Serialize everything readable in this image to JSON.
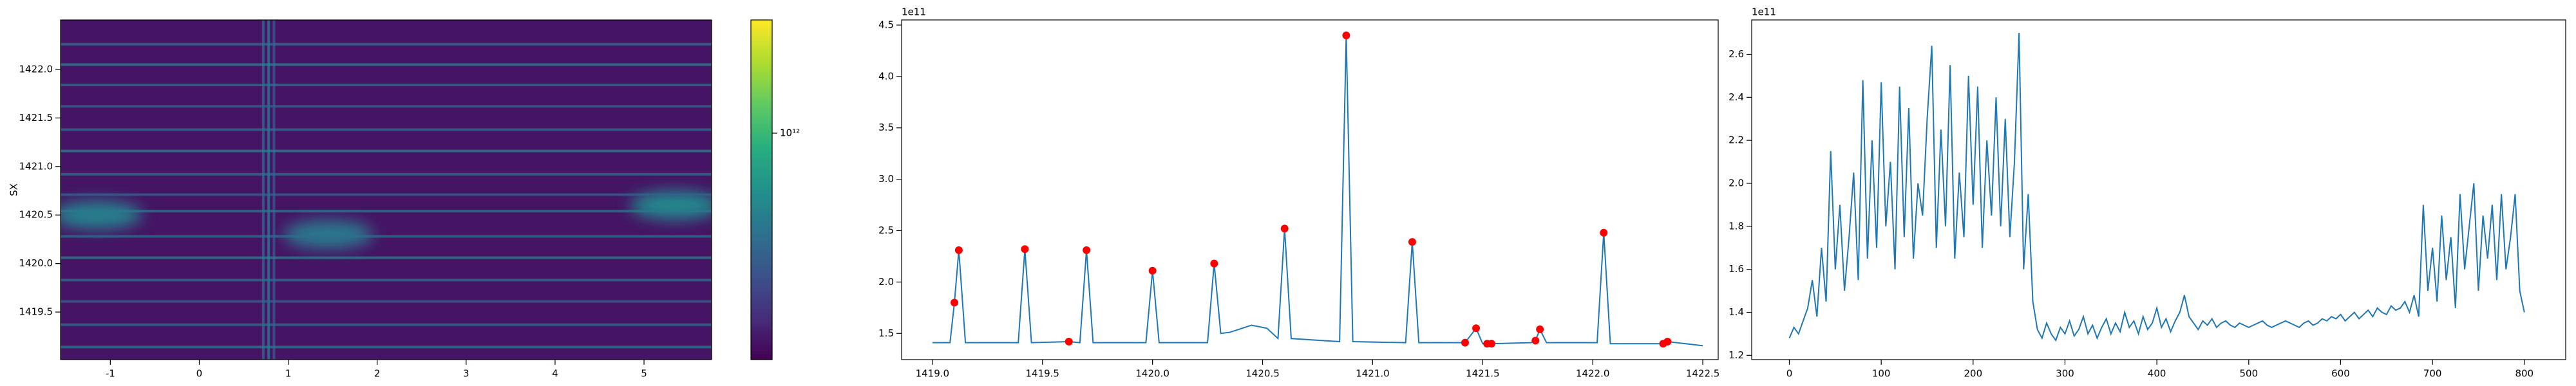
{
  "chart_data": [
    {
      "type": "heatmap",
      "ylabel": "SX",
      "xlim": [
        -1.56,
        5.76
      ],
      "ylim": [
        1419.01,
        1422.51
      ],
      "xticks": [
        -1,
        0,
        1,
        2,
        3,
        4,
        5
      ],
      "yticks": [
        1419.5,
        {
          "value": 1420,
          "label": "1420.0"
        },
        1420.5,
        {
          "value": 1421,
          "label": "1421.0"
        },
        1421.5,
        {
          "value": 1422,
          "label": "1422.0"
        }
      ],
      "colormap": "viridis",
      "color_scale": "log",
      "clim": [
        100000000000.0,
        3162000000000.0
      ],
      "colorbar_ticks": [
        {
          "value": 1000000000000.0,
          "label": "10¹²"
        }
      ],
      "background": 120000000000.0,
      "h_lines": {
        "y": [
          1422.26,
          1422.05,
          1421.84,
          1421.62,
          1421.38,
          1421.16,
          1420.92,
          1420.71,
          1420.54,
          1420.28,
          1420.06,
          1419.83,
          1419.61,
          1419.37,
          1419.14
        ],
        "values": [
          350000000000.0,
          450000000000.0,
          350000000000.0,
          300000000000.0,
          350000000000.0,
          450000000000.0,
          350000000000.0,
          300000000000.0,
          400000000000.0,
          350000000000.0,
          450000000000.0,
          350000000000.0,
          300000000000.0,
          350000000000.0,
          400000000000.0
        ]
      },
      "v_lines": {
        "x": [
          0.72,
          0.78,
          0.84
        ],
        "values": [
          300000000000.0,
          400000000000.0,
          250000000000.0
        ]
      },
      "blobs": {
        "x": [
          -1.15,
          1.45,
          5.35
        ],
        "y": [
          1420.5,
          1420.3,
          1420.6
        ],
        "values": [
          450000000000.0,
          400000000000.0,
          500000000000.0
        ]
      }
    },
    {
      "type": "line",
      "offset_text": "1e11",
      "xlim": [
        1418.86,
        1422.57
      ],
      "ylim": [
        1.245,
        4.55
      ],
      "xticks": [
        {
          "value": 1419,
          "label": "1419.0"
        },
        1419.5,
        {
          "value": 1420,
          "label": "1420.0"
        },
        1420.5,
        {
          "value": 1421,
          "label": "1421.0"
        },
        1421.5,
        {
          "value": 1422,
          "label": "1422.0"
        },
        1422.5
      ],
      "yticks": [
        1.5,
        {
          "value": 2,
          "label": "2.0"
        },
        2.5,
        {
          "value": 3,
          "label": "3.0"
        },
        3.5,
        {
          "value": 4,
          "label": "4.0"
        },
        4.5
      ],
      "series": [
        {
          "color": "#1f77b4",
          "x": [
            1419.0,
            1419.08,
            1419.1,
            1419.12,
            1419.15,
            1419.39,
            1419.42,
            1419.45,
            1419.62,
            1419.67,
            1419.7,
            1419.73,
            1419.97,
            1420.0,
            1420.03,
            1420.25,
            1420.28,
            1420.31,
            1420.35,
            1420.45,
            1420.52,
            1420.57,
            1420.6,
            1420.63,
            1420.85,
            1420.88,
            1420.91,
            1421.15,
            1421.18,
            1421.21,
            1421.42,
            1421.47,
            1421.5,
            1421.52,
            1421.54,
            1421.72,
            1421.74,
            1421.76,
            1421.79,
            1422.02,
            1422.05,
            1422.08,
            1422.32,
            1422.34,
            1422.5
          ],
          "values": [
            1.41,
            1.41,
            1.8,
            2.31,
            1.41,
            1.41,
            2.32,
            1.41,
            1.42,
            1.41,
            2.31,
            1.41,
            1.41,
            2.11,
            1.41,
            1.41,
            2.18,
            1.5,
            1.51,
            1.58,
            1.55,
            1.45,
            2.52,
            1.45,
            1.42,
            4.4,
            1.42,
            1.41,
            2.39,
            1.41,
            1.41,
            1.55,
            1.4,
            1.4,
            1.4,
            1.41,
            1.43,
            1.54,
            1.41,
            1.41,
            2.48,
            1.4,
            1.4,
            1.42,
            1.38
          ]
        }
      ],
      "peaks": {
        "color": "#ff0000",
        "x": [
          1419.1,
          1419.12,
          1419.42,
          1419.62,
          1419.7,
          1420.0,
          1420.28,
          1420.6,
          1420.88,
          1421.18,
          1421.42,
          1421.47,
          1421.52,
          1421.54,
          1421.74,
          1421.76,
          1422.05,
          1422.32,
          1422.34
        ],
        "values": [
          1.8,
          2.31,
          2.32,
          1.42,
          2.31,
          2.11,
          2.18,
          2.52,
          4.4,
          2.39,
          1.41,
          1.55,
          1.4,
          1.4,
          1.43,
          1.54,
          2.48,
          1.4,
          1.42
        ]
      }
    },
    {
      "type": "line",
      "offset_text": "1e11",
      "xlim": [
        -41,
        845
      ],
      "ylim": [
        1.18,
        2.76
      ],
      "xticks": [
        0,
        100,
        200,
        300,
        400,
        500,
        600,
        700,
        800
      ],
      "yticks": [
        1.2,
        1.4,
        1.6,
        1.8,
        {
          "value": 2,
          "label": "2.0"
        },
        2.2,
        2.4,
        2.6
      ],
      "series": [
        {
          "color": "#1f77b4",
          "x": [
            0,
            5,
            10,
            15,
            20,
            25,
            30,
            35,
            40,
            45,
            50,
            55,
            60,
            65,
            70,
            75,
            80,
            85,
            90,
            95,
            100,
            105,
            110,
            115,
            120,
            125,
            130,
            135,
            140,
            145,
            150,
            155,
            160,
            165,
            170,
            175,
            180,
            185,
            190,
            195,
            200,
            205,
            210,
            215,
            220,
            225,
            230,
            235,
            240,
            245,
            250,
            255,
            260,
            265,
            270,
            275,
            280,
            285,
            290,
            295,
            300,
            305,
            310,
            315,
            320,
            325,
            330,
            335,
            340,
            345,
            350,
            355,
            360,
            365,
            370,
            375,
            380,
            385,
            390,
            395,
            400,
            405,
            410,
            415,
            420,
            425,
            430,
            435,
            440,
            445,
            450,
            455,
            460,
            465,
            470,
            475,
            480,
            485,
            490,
            495,
            500,
            505,
            510,
            515,
            520,
            525,
            530,
            535,
            540,
            545,
            550,
            555,
            560,
            565,
            570,
            575,
            580,
            585,
            590,
            595,
            600,
            605,
            610,
            615,
            620,
            625,
            630,
            635,
            640,
            645,
            650,
            655,
            660,
            665,
            670,
            675,
            680,
            685,
            690,
            695,
            700,
            705,
            710,
            715,
            720,
            725,
            730,
            735,
            740,
            745,
            750,
            755,
            760,
            765,
            770,
            775,
            780,
            785,
            790,
            795,
            800
          ],
          "values": [
            1.28,
            1.33,
            1.3,
            1.36,
            1.42,
            1.55,
            1.38,
            1.7,
            1.45,
            2.15,
            1.6,
            1.9,
            1.5,
            1.75,
            2.05,
            1.55,
            2.48,
            1.65,
            2.2,
            1.7,
            2.47,
            1.8,
            2.1,
            1.6,
            2.45,
            1.75,
            2.35,
            1.65,
            2.0,
            1.85,
            2.3,
            2.64,
            1.7,
            2.25,
            1.8,
            2.55,
            1.65,
            2.05,
            1.75,
            2.5,
            1.9,
            2.45,
            1.7,
            2.2,
            1.85,
            2.4,
            1.8,
            2.3,
            1.75,
            2.1,
            2.7,
            1.6,
            1.95,
            1.45,
            1.32,
            1.28,
            1.35,
            1.3,
            1.27,
            1.33,
            1.3,
            1.36,
            1.29,
            1.32,
            1.38,
            1.3,
            1.34,
            1.28,
            1.33,
            1.37,
            1.3,
            1.35,
            1.31,
            1.4,
            1.33,
            1.36,
            1.3,
            1.38,
            1.32,
            1.35,
            1.42,
            1.33,
            1.37,
            1.31,
            1.36,
            1.4,
            1.48,
            1.38,
            1.35,
            1.32,
            1.36,
            1.34,
            1.37,
            1.33,
            1.35,
            1.36,
            1.34,
            1.33,
            1.35,
            1.34,
            1.33,
            1.34,
            1.35,
            1.36,
            1.34,
            1.33,
            1.34,
            1.35,
            1.36,
            1.35,
            1.34,
            1.33,
            1.35,
            1.36,
            1.34,
            1.35,
            1.37,
            1.36,
            1.38,
            1.37,
            1.39,
            1.36,
            1.38,
            1.4,
            1.37,
            1.39,
            1.41,
            1.38,
            1.42,
            1.4,
            1.39,
            1.43,
            1.41,
            1.42,
            1.45,
            1.4,
            1.48,
            1.38,
            1.9,
            1.5,
            1.7,
            1.45,
            1.85,
            1.55,
            1.75,
            1.42,
            1.95,
            1.6,
            1.8,
            2.0,
            1.5,
            1.85,
            1.65,
            1.9,
            1.55,
            1.95,
            1.6,
            1.75,
            1.95,
            1.5,
            1.4
          ]
        }
      ]
    }
  ]
}
